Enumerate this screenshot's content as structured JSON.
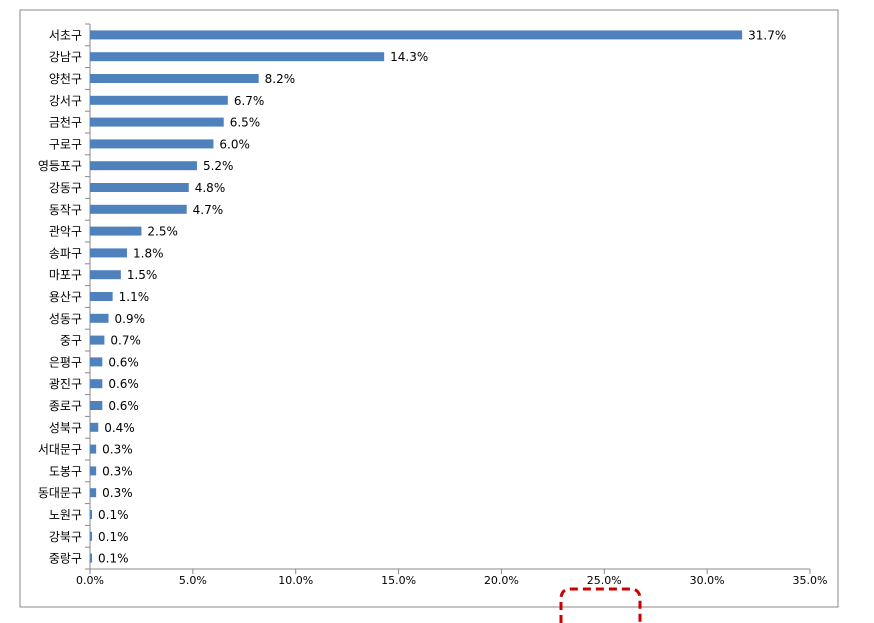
{
  "chart_data": {
    "type": "bar",
    "orientation": "horizontal",
    "color": "#4f81bd",
    "categories": [
      "서초구",
      "강남구",
      "양천구",
      "강서구",
      "금천구",
      "구로구",
      "영등포구",
      "강동구",
      "동작구",
      "관악구",
      "송파구",
      "마포구",
      "용산구",
      "성동구",
      "중구",
      "은평구",
      "광진구",
      "종로구",
      "성북구",
      "서대문구",
      "도봉구",
      "동대문구",
      "노원구",
      "강북구",
      "중랑구"
    ],
    "values": [
      31.7,
      14.3,
      8.2,
      6.7,
      6.5,
      6.0,
      5.2,
      4.8,
      4.7,
      2.5,
      1.8,
      1.5,
      1.1,
      0.9,
      0.7,
      0.6,
      0.6,
      0.6,
      0.4,
      0.3,
      0.3,
      0.3,
      0.1,
      0.1,
      0.1
    ],
    "value_labels": [
      "31.7%",
      "14.3%",
      "8.2%",
      "6.7%",
      "6.5%",
      "6.0%",
      "5.2%",
      "4.8%",
      "4.7%",
      "2.5%",
      "1.8%",
      "1.5%",
      "1.1%",
      "0.9%",
      "0.7%",
      "0.6%",
      "0.6%",
      "0.6%",
      "0.4%",
      "0.3%",
      "0.3%",
      "0.3%",
      "0.1%",
      "0.1%",
      "0.1%"
    ],
    "xlim": [
      0,
      35
    ],
    "xticks": [
      {
        "value": 0,
        "label": "0.0%"
      },
      {
        "value": 5,
        "label": "5.0%"
      },
      {
        "value": 10,
        "label": "10.0%"
      },
      {
        "value": 15,
        "label": "15.0%"
      },
      {
        "value": 20,
        "label": "20.0%"
      },
      {
        "value": 25,
        "label": "25.0%"
      },
      {
        "value": 30,
        "label": "30.0%"
      },
      {
        "value": 35,
        "label": "35.0%"
      }
    ],
    "grid": false
  }
}
